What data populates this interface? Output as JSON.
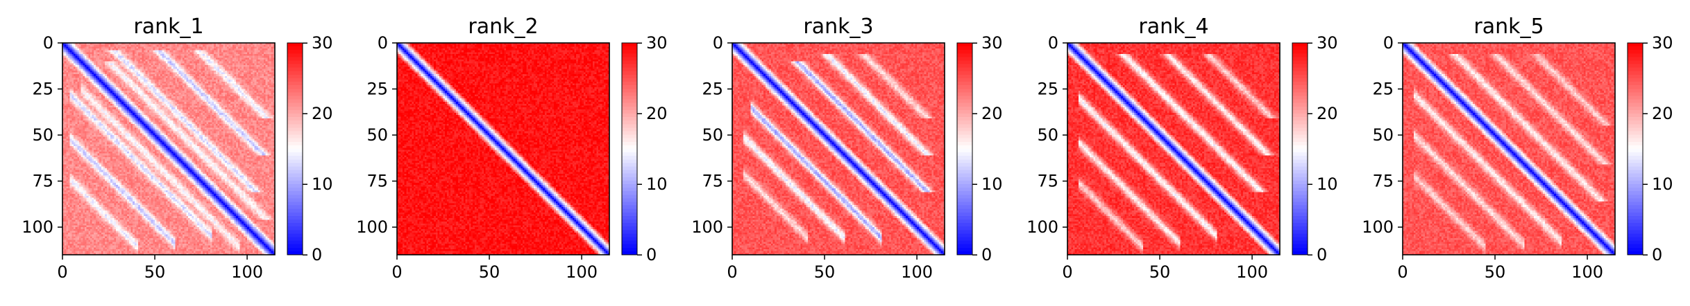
{
  "chart_data": [
    {
      "type": "heatmap",
      "title": "rank_1",
      "xlim": [
        0,
        115
      ],
      "ylim": [
        115,
        0
      ],
      "x_ticks": [
        0,
        50,
        100
      ],
      "y_ticks": [
        0,
        25,
        50,
        75,
        100
      ],
      "colorbar": {
        "min": 0,
        "max": 30,
        "ticks": [
          0,
          10,
          20,
          30
        ]
      },
      "colormap": [
        "#0000ff",
        "#ffffff",
        "#ff0000"
      ],
      "diagonal_band": true,
      "background_level": 22,
      "features": [
        {
          "offset": 24,
          "start": 4,
          "end": 80,
          "value": 13
        },
        {
          "offset": 48,
          "start": 4,
          "end": 60,
          "value": 12
        },
        {
          "offset": 70,
          "start": 4,
          "end": 40,
          "value": 14
        },
        {
          "offset": 15,
          "start": 10,
          "end": 95,
          "value": 15
        }
      ]
    },
    {
      "type": "heatmap",
      "title": "rank_2",
      "xlim": [
        0,
        115
      ],
      "ylim": [
        115,
        0
      ],
      "x_ticks": [
        0,
        50,
        100
      ],
      "y_ticks": [
        0,
        25,
        50,
        75,
        100
      ],
      "colorbar": {
        "min": 0,
        "max": 30,
        "ticks": [
          0,
          10,
          20,
          30
        ]
      },
      "colormap": [
        "#0000ff",
        "#ffffff",
        "#ff0000"
      ],
      "diagonal_band": true,
      "background_level": 29,
      "features": []
    },
    {
      "type": "heatmap",
      "title": "rank_3",
      "xlim": [
        0,
        115
      ],
      "ylim": [
        115,
        0
      ],
      "x_ticks": [
        0,
        50,
        100
      ],
      "y_ticks": [
        0,
        25,
        50,
        75,
        100
      ],
      "colorbar": {
        "min": 0,
        "max": 30,
        "ticks": [
          0,
          10,
          20,
          30
        ]
      },
      "colormap": [
        "#0000ff",
        "#ffffff",
        "#ff0000"
      ],
      "diagonal_band": true,
      "background_level": 25,
      "features": [
        {
          "offset": 25,
          "start": 10,
          "end": 80,
          "value": 10
        },
        {
          "offset": 45,
          "start": 6,
          "end": 60,
          "value": 14
        },
        {
          "offset": 65,
          "start": 6,
          "end": 40,
          "value": 17
        }
      ]
    },
    {
      "type": "heatmap",
      "title": "rank_4",
      "xlim": [
        0,
        115
      ],
      "ylim": [
        115,
        0
      ],
      "x_ticks": [
        0,
        50,
        100
      ],
      "y_ticks": [
        0,
        25,
        50,
        75,
        100
      ],
      "colorbar": {
        "min": 0,
        "max": 30,
        "ticks": [
          0,
          10,
          20,
          30
        ]
      },
      "colormap": [
        "#0000ff",
        "#ffffff",
        "#ff0000"
      ],
      "diagonal_band": true,
      "background_level": 27,
      "features": [
        {
          "offset": 24,
          "start": 6,
          "end": 80,
          "value": 15
        },
        {
          "offset": 48,
          "start": 6,
          "end": 60,
          "value": 16
        },
        {
          "offset": 70,
          "start": 6,
          "end": 40,
          "value": 18
        }
      ]
    },
    {
      "type": "heatmap",
      "title": "rank_5",
      "xlim": [
        0,
        115
      ],
      "ylim": [
        115,
        0
      ],
      "x_ticks": [
        0,
        50,
        100
      ],
      "y_ticks": [
        0,
        25,
        50,
        75,
        100
      ],
      "colorbar": {
        "min": 0,
        "max": 30,
        "ticks": [
          0,
          10,
          20,
          30
        ]
      },
      "colormap": [
        "#0000ff",
        "#ffffff",
        "#ff0000"
      ],
      "diagonal_band": true,
      "background_level": 25,
      "features": [
        {
          "offset": 22,
          "start": 6,
          "end": 85,
          "value": 16
        },
        {
          "offset": 44,
          "start": 6,
          "end": 65,
          "value": 17
        },
        {
          "offset": 66,
          "start": 6,
          "end": 44,
          "value": 18
        }
      ]
    }
  ]
}
